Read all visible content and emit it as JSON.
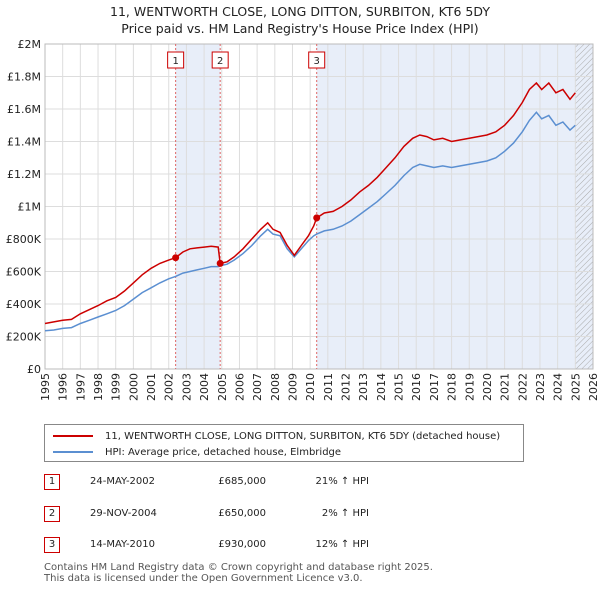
{
  "chart_data": {
    "type": "line",
    "title": "11, WENTWORTH CLOSE, LONG DITTON, SURBITON, KT6 5DY",
    "subtitle": "Price paid vs. HM Land Registry's House Price Index (HPI)",
    "xlabel": "",
    "ylabel": "",
    "xlim": [
      1995,
      2026
    ],
    "ylim": [
      0,
      2000000
    ],
    "x_ticks": [
      "1995",
      "1996",
      "1997",
      "1998",
      "1999",
      "2000",
      "2001",
      "2002",
      "2003",
      "2004",
      "2005",
      "2006",
      "2007",
      "2008",
      "2009",
      "2010",
      "2011",
      "2012",
      "2013",
      "2014",
      "2015",
      "2016",
      "2017",
      "2018",
      "2019",
      "2020",
      "2021",
      "2022",
      "2023",
      "2024",
      "2025",
      "2026"
    ],
    "y_ticks": [
      {
        "value": 0,
        "label": "£0"
      },
      {
        "value": 200000,
        "label": "£200K"
      },
      {
        "value": 400000,
        "label": "£400K"
      },
      {
        "value": 600000,
        "label": "£600K"
      },
      {
        "value": 800000,
        "label": "£800K"
      },
      {
        "value": 1000000,
        "label": "£1M"
      },
      {
        "value": 1200000,
        "label": "£1.2M"
      },
      {
        "value": 1400000,
        "label": "£1.4M"
      },
      {
        "value": 1600000,
        "label": "£1.6M"
      },
      {
        "value": 1800000,
        "label": "£1.8M"
      },
      {
        "value": 2000000,
        "label": "£2M"
      }
    ],
    "grid": true,
    "shaded_spans": [
      [
        2002.39,
        2004.91
      ],
      [
        2010.37,
        2026
      ]
    ],
    "hatched_from": 2025.0,
    "series": [
      {
        "name": "11, WENTWORTH CLOSE, LONG DITTON, SURBITON, KT6 5DY (detached house)",
        "color": "#cc0000",
        "x": [
          1995.0,
          1995.5,
          1996.0,
          1996.5,
          1997.0,
          1997.5,
          1998.0,
          1998.5,
          1999.0,
          1999.5,
          2000.0,
          2000.5,
          2001.0,
          2001.5,
          2002.0,
          2002.39,
          2002.8,
          2003.2,
          2003.6,
          2004.0,
          2004.4,
          2004.8,
          2004.91,
          2005.3,
          2005.7,
          2006.2,
          2006.7,
          2007.2,
          2007.6,
          2007.9,
          2008.3,
          2008.7,
          2009.1,
          2009.5,
          2009.9,
          2010.2,
          2010.37,
          2010.8,
          2011.3,
          2011.8,
          2012.3,
          2012.8,
          2013.3,
          2013.8,
          2014.3,
          2014.8,
          2015.3,
          2015.8,
          2016.2,
          2016.6,
          2017.0,
          2017.5,
          2018.0,
          2018.5,
          2019.0,
          2019.5,
          2020.0,
          2020.5,
          2021.0,
          2021.5,
          2022.0,
          2022.4,
          2022.8,
          2023.1,
          2023.5,
          2023.9,
          2024.3,
          2024.7,
          2025.0
        ],
        "values": [
          280000,
          290000,
          300000,
          305000,
          340000,
          365000,
          390000,
          420000,
          440000,
          480000,
          530000,
          580000,
          620000,
          650000,
          670000,
          685000,
          720000,
          740000,
          745000,
          750000,
          755000,
          750000,
          650000,
          660000,
          690000,
          740000,
          800000,
          860000,
          900000,
          860000,
          840000,
          760000,
          700000,
          760000,
          820000,
          880000,
          930000,
          960000,
          970000,
          1000000,
          1040000,
          1090000,
          1130000,
          1180000,
          1240000,
          1300000,
          1370000,
          1420000,
          1440000,
          1430000,
          1410000,
          1420000,
          1400000,
          1410000,
          1420000,
          1430000,
          1440000,
          1460000,
          1500000,
          1560000,
          1640000,
          1720000,
          1760000,
          1720000,
          1760000,
          1700000,
          1720000,
          1660000,
          1700000
        ]
      },
      {
        "name": "HPI: Average price, detached house, Elmbridge",
        "color": "#5b8fd1",
        "x": [
          1995.0,
          1995.5,
          1996.0,
          1996.5,
          1997.0,
          1997.5,
          1998.0,
          1998.5,
          1999.0,
          1999.5,
          2000.0,
          2000.5,
          2001.0,
          2001.5,
          2002.0,
          2002.39,
          2002.8,
          2003.2,
          2003.6,
          2004.0,
          2004.4,
          2004.8,
          2004.91,
          2005.3,
          2005.7,
          2006.2,
          2006.7,
          2007.2,
          2007.6,
          2007.9,
          2008.3,
          2008.7,
          2009.1,
          2009.5,
          2009.9,
          2010.2,
          2010.37,
          2010.8,
          2011.3,
          2011.8,
          2012.3,
          2012.8,
          2013.3,
          2013.8,
          2014.3,
          2014.8,
          2015.3,
          2015.8,
          2016.2,
          2016.6,
          2017.0,
          2017.5,
          2018.0,
          2018.5,
          2019.0,
          2019.5,
          2020.0,
          2020.5,
          2021.0,
          2021.5,
          2022.0,
          2022.4,
          2022.8,
          2023.1,
          2023.5,
          2023.9,
          2024.3,
          2024.7,
          2025.0
        ],
        "values": [
          235000,
          240000,
          250000,
          255000,
          280000,
          300000,
          320000,
          340000,
          360000,
          390000,
          430000,
          470000,
          500000,
          530000,
          555000,
          570000,
          590000,
          600000,
          610000,
          620000,
          630000,
          630000,
          635000,
          645000,
          670000,
          710000,
          760000,
          820000,
          860000,
          830000,
          820000,
          740000,
          690000,
          740000,
          790000,
          820000,
          830000,
          850000,
          860000,
          880000,
          910000,
          950000,
          990000,
          1030000,
          1080000,
          1130000,
          1190000,
          1240000,
          1260000,
          1250000,
          1240000,
          1250000,
          1240000,
          1250000,
          1260000,
          1270000,
          1280000,
          1300000,
          1340000,
          1390000,
          1460000,
          1530000,
          1580000,
          1540000,
          1560000,
          1500000,
          1520000,
          1470000,
          1500000
        ]
      }
    ],
    "annotations": [
      {
        "label": "1",
        "x": 2002.39,
        "y": 685000
      },
      {
        "label": "2",
        "x": 2004.91,
        "y": 650000
      },
      {
        "label": "3",
        "x": 2010.37,
        "y": 930000
      }
    ]
  },
  "legend": {
    "items": [
      {
        "label": "11, WENTWORTH CLOSE, LONG DITTON, SURBITON, KT6 5DY (detached house)",
        "color": "#cc0000"
      },
      {
        "label": "HPI: Average price, detached house, Elmbridge",
        "color": "#5b8fd1"
      }
    ]
  },
  "transactions": [
    {
      "num": "1",
      "date": "24-MAY-2002",
      "price": "£685,000",
      "hpi": "21% ↑ HPI"
    },
    {
      "num": "2",
      "date": "29-NOV-2004",
      "price": "£650,000",
      "hpi": "2% ↑ HPI"
    },
    {
      "num": "3",
      "date": "14-MAY-2010",
      "price": "£930,000",
      "hpi": "12% ↑ HPI"
    }
  ],
  "footer": {
    "line1": "Contains HM Land Registry data © Crown copyright and database right 2025.",
    "line2": "This data is licensed under the Open Government Licence v3.0."
  }
}
